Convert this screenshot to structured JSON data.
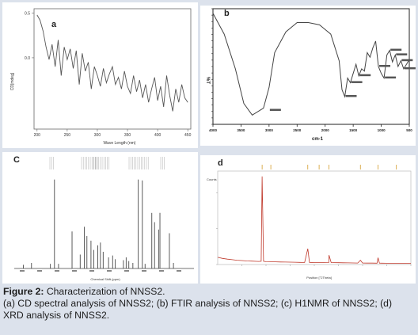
{
  "caption": {
    "title": "Figure 2:",
    "title_rest": " Characterization of NNSS2.",
    "body": "(a) CD spectral analysis of NNSS2; (b) FTIR analysis of NNSS2; (c) H1NMR of NNSS2; (d) XRD analysis of NNSS2."
  },
  "chart_data": [
    {
      "panel": "a",
      "type": "line",
      "title": "",
      "xlabel": "Wave Length (nm)",
      "ylabel": "CD[mdeg]",
      "xlim": [
        195,
        455
      ],
      "ylim": [
        -0.8,
        0.55
      ],
      "xticks": [
        "200",
        "250",
        "300",
        "350",
        "400",
        "450"
      ],
      "yticks": [
        "0.5",
        "0.0"
      ],
      "x": [
        200,
        205,
        210,
        215,
        220,
        225,
        230,
        235,
        240,
        245,
        250,
        255,
        260,
        265,
        270,
        275,
        280,
        285,
        290,
        295,
        300,
        305,
        310,
        315,
        320,
        325,
        330,
        335,
        340,
        345,
        350,
        355,
        360,
        365,
        370,
        375,
        380,
        385,
        390,
        395,
        400,
        405,
        410,
        415,
        420,
        425,
        430,
        435,
        440,
        445,
        450
      ],
      "y": [
        0.48,
        0.42,
        0.3,
        0.12,
        -0.02,
        0.15,
        -0.1,
        0.2,
        -0.2,
        0.12,
        -0.02,
        0.1,
        -0.12,
        0.08,
        -0.3,
        0.05,
        -0.15,
        -0.05,
        -0.35,
        -0.1,
        -0.2,
        -0.32,
        -0.12,
        -0.28,
        -0.18,
        -0.1,
        -0.3,
        -0.22,
        -0.35,
        -0.15,
        -0.32,
        -0.4,
        -0.2,
        -0.38,
        -0.25,
        -0.45,
        -0.3,
        -0.5,
        -0.35,
        -0.22,
        -0.48,
        -0.32,
        -0.55,
        -0.2,
        -0.42,
        -0.6,
        -0.35,
        -0.5,
        -0.3,
        -0.45,
        -0.5
      ]
    },
    {
      "panel": "b",
      "type": "line",
      "title": "",
      "xlabel": "cm-1",
      "ylabel": "%T",
      "xlim": [
        4000,
        500
      ],
      "ylim": [
        0,
        100
      ],
      "xticks": [
        "4000",
        "3500",
        "3000",
        "2500",
        "2000",
        "1500",
        "1000",
        "500"
      ],
      "x": [
        4000,
        3800,
        3600,
        3450,
        3300,
        3100,
        3000,
        2900,
        2700,
        2500,
        2300,
        2100,
        2000,
        1900,
        1750,
        1700,
        1650,
        1600,
        1550,
        1500,
        1450,
        1400,
        1350,
        1300,
        1250,
        1200,
        1150,
        1100,
        1050,
        1000,
        950,
        900,
        850,
        800,
        750,
        700,
        650,
        600,
        550,
        500
      ],
      "y": [
        96,
        78,
        48,
        18,
        8,
        14,
        32,
        62,
        80,
        88,
        88,
        86,
        82,
        78,
        55,
        30,
        24,
        40,
        36,
        44,
        52,
        42,
        48,
        46,
        62,
        58,
        66,
        72,
        50,
        44,
        40,
        60,
        64,
        54,
        60,
        50,
        55,
        48,
        52,
        56
      ]
    },
    {
      "panel": "c",
      "type": "line",
      "title": "",
      "xlabel": "Chemical Shift (ppm)",
      "ylabel": "",
      "xlim": [
        12.5,
        -0.5
      ],
      "ylim": [
        0,
        100
      ],
      "x": [
        12.0,
        11.4,
        10.0,
        9.7,
        9.4,
        8.4,
        7.8,
        7.5,
        7.3,
        7.0,
        6.8,
        6.5,
        6.3,
        6.1,
        5.7,
        5.4,
        5.2,
        4.6,
        4.4,
        4.2,
        3.9,
        3.5,
        3.2,
        3.0,
        2.5,
        2.3,
        2.0,
        1.9,
        1.2,
        0.9
      ],
      "y": [
        4,
        6,
        5,
        96,
        5,
        40,
        15,
        45,
        35,
        30,
        20,
        25,
        28,
        18,
        12,
        14,
        10,
        9,
        12,
        8,
        6,
        96,
        95,
        5,
        60,
        50,
        42,
        60,
        38,
        6
      ]
    },
    {
      "panel": "d",
      "type": "line",
      "title": "",
      "xlabel": "Position [°2Theta]",
      "ylabel": "Counts",
      "xlim": [
        10,
        90
      ],
      "ylim": [
        0,
        2600
      ],
      "x": [
        10,
        12,
        14,
        16,
        18,
        20,
        22,
        24,
        26,
        27,
        28,
        28.4,
        29,
        30,
        32,
        34,
        36,
        38,
        40,
        42,
        44,
        46,
        47.3,
        48,
        50,
        52,
        54,
        56,
        56.1,
        57,
        58,
        60,
        62,
        64,
        66,
        68,
        69.1,
        70,
        72,
        74,
        76,
        76.4,
        77,
        78,
        80,
        82,
        84,
        86,
        88,
        90
      ],
      "y": [
        200,
        170,
        150,
        135,
        120,
        110,
        100,
        95,
        88,
        86,
        90,
        2450,
        90,
        80,
        78,
        74,
        70,
        68,
        66,
        64,
        60,
        58,
        440,
        60,
        56,
        54,
        52,
        55,
        260,
        56,
        52,
        50,
        48,
        46,
        44,
        42,
        120,
        42,
        40,
        40,
        38,
        190,
        40,
        38,
        36,
        34,
        32,
        32,
        30,
        30
      ]
    }
  ]
}
